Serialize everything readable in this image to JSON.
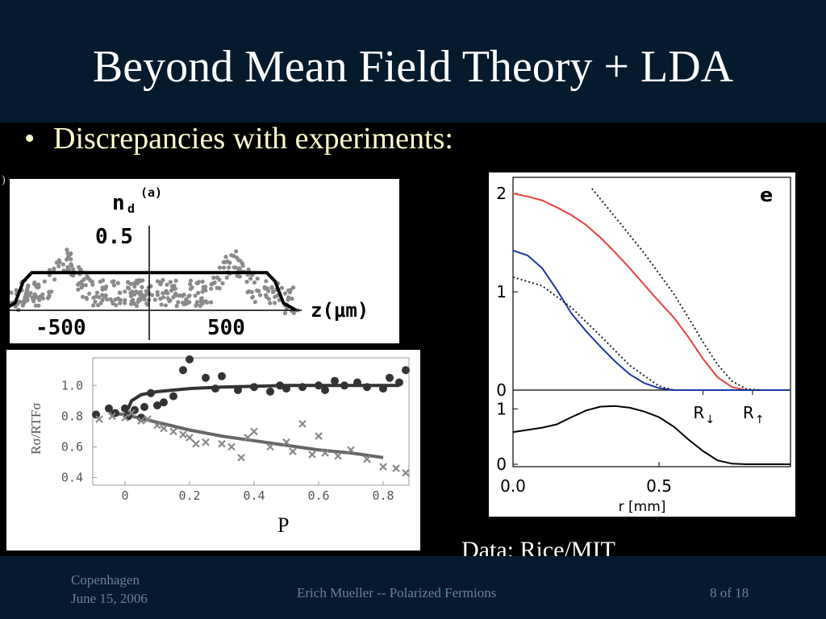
{
  "slide": {
    "title": "Beyond Mean Field Theory + LDA",
    "bullet_marker": "•",
    "bullet": "Discrepancies with experiments:",
    "data_credit": "Data: Rice/MIT",
    "corner_mark": ")"
  },
  "footer": {
    "location": "Copenhagen",
    "date": "June 15, 2006",
    "center": "Erich Mueller -- Polarized Fermions",
    "page": "8 of 18"
  },
  "colors": {
    "title_band": "#051a2c",
    "bullet_text": "#ffffcc",
    "red_curve": "#e8413c",
    "blue_curve": "#1a3aa6",
    "gray_marks": "#888888"
  },
  "chart_data": [
    {
      "type": "scatter",
      "title": "n_d^(a)",
      "title_main": "n",
      "title_sub": "d",
      "title_sup": "(a)",
      "xlabel": "z(μm)",
      "x_ticks": [
        "-500",
        "500"
      ],
      "y_ticks": [
        "0.5"
      ],
      "series": [
        {
          "role": "theory",
          "x": [
            -700,
            -640,
            -600,
            -560,
            560,
            600,
            640,
            700
          ],
          "y": [
            0.0,
            0.05,
            0.2,
            0.26,
            0.26,
            0.2,
            0.05,
            0.0
          ]
        }
      ],
      "scatter_note": "noisy gray data points, peaks near z≈±400",
      "xlim": [
        -900,
        900
      ],
      "ylim": [
        -0.05,
        0.62
      ]
    },
    {
      "type": "scatter",
      "xlabel": "P",
      "ylabel": "Rσ/RTFσ",
      "x_ticks": [
        "0",
        "0.2",
        "0.4",
        "0.6",
        "0.8"
      ],
      "y_ticks": [
        "0.4",
        "0.6",
        "0.8",
        "1.0"
      ],
      "xlim": [
        -0.1,
        0.88
      ],
      "ylim": [
        0.35,
        1.18
      ],
      "series": [
        {
          "role": "dots",
          "x": [
            -0.09,
            -0.05,
            -0.03,
            0.0,
            0.01,
            0.03,
            0.05,
            0.06,
            0.08,
            0.1,
            0.12,
            0.15,
            0.18,
            0.2,
            0.25,
            0.28,
            0.3,
            0.35,
            0.4,
            0.45,
            0.48,
            0.5,
            0.55,
            0.6,
            0.62,
            0.65,
            0.68,
            0.72,
            0.75,
            0.8,
            0.82,
            0.85,
            0.87
          ],
          "y": [
            0.81,
            0.85,
            0.82,
            0.85,
            0.8,
            0.84,
            0.79,
            0.86,
            0.95,
            0.87,
            0.89,
            0.93,
            1.1,
            1.17,
            1.05,
            0.98,
            1.06,
            0.97,
            0.99,
            0.96,
            1.0,
            0.98,
            0.99,
            1.0,
            0.97,
            1.03,
            1.0,
            1.02,
            0.99,
            0.98,
            1.05,
            1.02,
            1.1
          ]
        },
        {
          "role": "crosses",
          "x": [
            -0.08,
            -0.04,
            0.0,
            0.02,
            0.05,
            0.07,
            0.1,
            0.12,
            0.15,
            0.18,
            0.2,
            0.22,
            0.25,
            0.3,
            0.33,
            0.36,
            0.38,
            0.4,
            0.45,
            0.5,
            0.52,
            0.55,
            0.58,
            0.6,
            0.62,
            0.66,
            0.7,
            0.75,
            0.8,
            0.84,
            0.87
          ],
          "y": [
            0.78,
            0.8,
            0.79,
            0.82,
            0.77,
            0.78,
            0.74,
            0.72,
            0.7,
            0.68,
            0.66,
            0.62,
            0.63,
            0.62,
            0.6,
            0.53,
            0.66,
            0.7,
            0.6,
            0.63,
            0.57,
            0.75,
            0.55,
            0.67,
            0.56,
            0.54,
            0.58,
            0.52,
            0.47,
            0.46,
            0.43
          ]
        },
        {
          "role": "upper fit",
          "x": [
            0.0,
            0.02,
            0.05,
            0.1,
            0.2,
            0.3,
            0.5,
            0.7,
            0.85
          ],
          "y": [
            0.8,
            0.9,
            0.94,
            0.96,
            0.98,
            0.99,
            1.0,
            1.0,
            1.0
          ]
        },
        {
          "role": "lower fit",
          "x": [
            -0.05,
            0.0,
            0.1,
            0.2,
            0.3,
            0.4,
            0.5,
            0.6,
            0.7,
            0.8
          ],
          "y": [
            0.82,
            0.81,
            0.76,
            0.71,
            0.67,
            0.64,
            0.61,
            0.58,
            0.56,
            0.53
          ]
        }
      ]
    },
    {
      "type": "line",
      "panel_label": "e",
      "xlabel": "r [mm]",
      "x_ticks": [
        "0.0",
        "0.5"
      ],
      "top_y_ticks": [
        "0",
        "1",
        "2"
      ],
      "bottom_y_ticks": [
        "0",
        "1"
      ],
      "markers": [
        {
          "text": "R",
          "sub": "↓",
          "x": 0.65
        },
        {
          "text": "R",
          "sub": "↑",
          "x": 0.82
        }
      ],
      "xlim": [
        0.0,
        0.95
      ],
      "top_ylim": [
        0,
        2.05
      ],
      "bottom_ylim": [
        0,
        1.12
      ],
      "series": [
        {
          "name": "red",
          "x": [
            0.0,
            0.05,
            0.1,
            0.15,
            0.2,
            0.25,
            0.3,
            0.35,
            0.4,
            0.45,
            0.5,
            0.55,
            0.6,
            0.65,
            0.7,
            0.75,
            0.8,
            0.85,
            0.95
          ],
          "y": [
            2.0,
            1.97,
            1.93,
            1.86,
            1.78,
            1.68,
            1.55,
            1.4,
            1.24,
            1.07,
            0.9,
            0.74,
            0.54,
            0.32,
            0.13,
            0.03,
            0.0,
            0.0,
            0.0
          ]
        },
        {
          "name": "blue",
          "x": [
            0.0,
            0.05,
            0.1,
            0.15,
            0.2,
            0.25,
            0.3,
            0.35,
            0.4,
            0.45,
            0.5,
            0.55,
            0.6,
            0.95
          ],
          "y": [
            1.42,
            1.37,
            1.24,
            1.02,
            0.78,
            0.6,
            0.44,
            0.29,
            0.16,
            0.07,
            0.02,
            0.0,
            0.0,
            0.0
          ]
        },
        {
          "name": "dotted upper",
          "x": [
            0.27,
            0.35,
            0.45,
            0.55,
            0.6,
            0.65,
            0.7,
            0.75,
            0.8,
            0.85
          ],
          "y": [
            2.05,
            1.76,
            1.39,
            0.98,
            0.74,
            0.49,
            0.26,
            0.09,
            0.01,
            0.0
          ]
        },
        {
          "name": "dotted lower",
          "x": [
            0.0,
            0.1,
            0.2,
            0.3,
            0.4,
            0.5,
            0.55
          ],
          "y": [
            1.15,
            1.06,
            0.84,
            0.55,
            0.25,
            0.04,
            0.0
          ]
        },
        {
          "name": "bottom difference",
          "x": [
            0.0,
            0.05,
            0.1,
            0.15,
            0.2,
            0.25,
            0.3,
            0.35,
            0.4,
            0.45,
            0.5,
            0.55,
            0.6,
            0.65,
            0.7,
            0.75,
            0.8,
            0.85,
            0.95
          ],
          "y": [
            0.58,
            0.62,
            0.66,
            0.72,
            0.85,
            0.97,
            1.04,
            1.05,
            1.02,
            0.95,
            0.85,
            0.68,
            0.45,
            0.24,
            0.07,
            0.01,
            0.0,
            0.0,
            0.0
          ]
        }
      ]
    }
  ]
}
